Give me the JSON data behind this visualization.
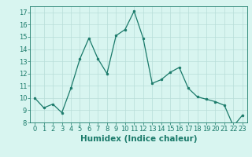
{
  "x": [
    0,
    1,
    2,
    3,
    4,
    5,
    6,
    7,
    8,
    9,
    10,
    11,
    12,
    13,
    14,
    15,
    16,
    17,
    18,
    19,
    20,
    21,
    22,
    23
  ],
  "y": [
    10.0,
    9.2,
    9.5,
    8.8,
    10.8,
    13.2,
    14.9,
    13.2,
    12.0,
    15.1,
    15.6,
    17.1,
    14.9,
    11.2,
    11.5,
    12.1,
    12.5,
    10.8,
    10.1,
    9.9,
    9.7,
    9.4,
    7.7,
    8.6
  ],
  "line_color": "#1a7a6a",
  "marker": "o",
  "marker_size": 2.0,
  "bg_color": "#d8f5f0",
  "grid_color": "#b8ddd8",
  "xlabel": "Humidex (Indice chaleur)",
  "ylim": [
    8,
    17.5
  ],
  "xlim": [
    -0.5,
    23.5
  ],
  "yticks": [
    8,
    9,
    10,
    11,
    12,
    13,
    14,
    15,
    16,
    17
  ],
  "xticks": [
    0,
    1,
    2,
    3,
    4,
    5,
    6,
    7,
    8,
    9,
    10,
    11,
    12,
    13,
    14,
    15,
    16,
    17,
    18,
    19,
    20,
    21,
    22,
    23
  ],
  "xlabel_fontsize": 7.5,
  "tick_fontsize": 6.0,
  "line_color_hex": "#1a7a6a"
}
